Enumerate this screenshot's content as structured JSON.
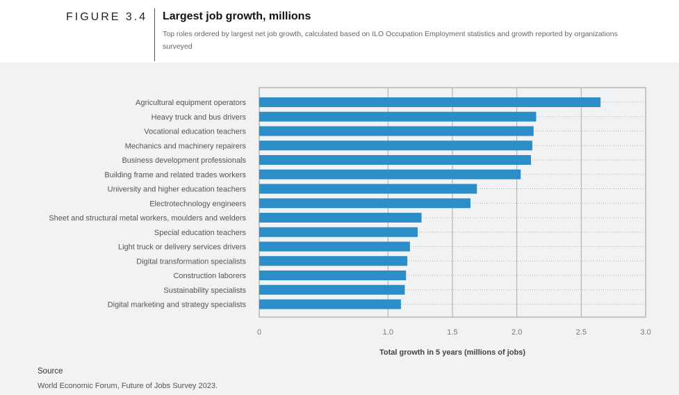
{
  "figure": {
    "label": "FIGURE 3.4",
    "title": "Largest job growth, millions",
    "subtitle": "Top roles ordered by largest net job growth, calculated based on ILO Occupation Employment statistics and growth reported by organizations surveyed"
  },
  "source": {
    "heading": "Source",
    "text": "World Economic Forum, Future of Jobs Survey 2023."
  },
  "colors": {
    "bar": "#2b8ec8",
    "panel": "#f1f2f3",
    "grid": "#aaaaaa"
  },
  "chart_data": {
    "type": "bar",
    "orientation": "horizontal",
    "categories": [
      "Agricultural equipment operators",
      "Heavy truck and bus drivers",
      "Vocational education teachers",
      "Mechanics and machinery repairers",
      "Business development professionals",
      "Building frame and related trades workers",
      "University and higher education teachers",
      "Electrotechnology engineers",
      "Sheet and structural metal workers, moulders and welders",
      "Special education teachers",
      "Light truck or delivery services drivers",
      "Digital transformation specialists",
      "Construction laborers",
      "Sustainability specialists",
      "Digital marketing and strategy specialists"
    ],
    "values": [
      2.65,
      2.15,
      2.13,
      2.12,
      2.11,
      2.03,
      1.69,
      1.64,
      1.26,
      1.23,
      1.17,
      1.15,
      1.14,
      1.13,
      1.1
    ],
    "xlim": [
      0,
      3.0
    ],
    "xticks": [
      0,
      1.0,
      1.5,
      2.0,
      2.5,
      3.0
    ],
    "xtick_labels": [
      "0",
      "1.0",
      "1.5",
      "2.0",
      "2.5",
      "3.0"
    ],
    "xlabel": "Total growth in 5 years (millions of jobs)",
    "ylabel": "",
    "grid": true
  }
}
